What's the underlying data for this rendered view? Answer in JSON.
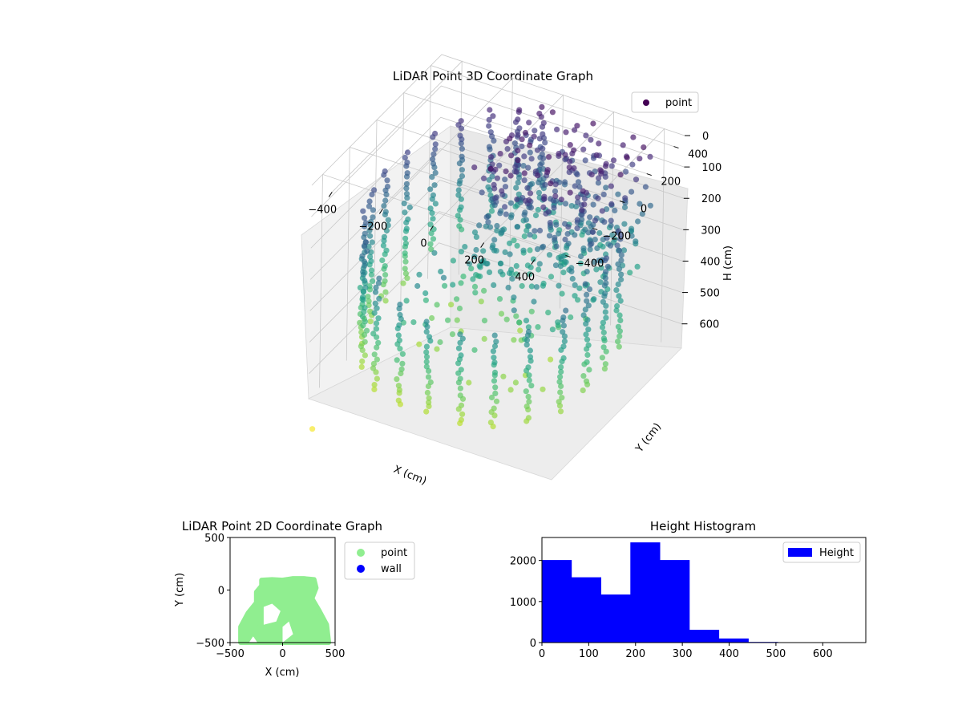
{
  "chart_data": [
    {
      "type": "scatter",
      "projection": "3d",
      "title": "LiDAR Point 3D Coordinate Graph",
      "xlabel": "X (cm)",
      "ylabel": "Y (cm)",
      "zlabel": "H (cm)",
      "xticks": [
        -400,
        -200,
        0,
        200,
        400
      ],
      "yticks": [
        -400,
        -200,
        0,
        200,
        400
      ],
      "zticks": [
        0,
        100,
        200,
        300,
        400,
        500,
        600
      ],
      "xlim": [
        -480,
        480
      ],
      "ylim": [
        -480,
        480
      ],
      "zlim": [
        0,
        680
      ],
      "z_axis_inverted": true,
      "colormap": "viridis",
      "legend": {
        "entries": [
          "point"
        ],
        "position": "top-right"
      },
      "grid": true,
      "series": [
        {
          "name": "point",
          "description_of_structure": "ring of vertical point columns around room perimeter plus dense upper cluster",
          "columns": [
            {
              "x": -420,
              "y": 120,
              "h_top": 140,
              "h_bottom": 560
            },
            {
              "x": -440,
              "y": 0,
              "h_top": 150,
              "h_bottom": 580
            },
            {
              "x": -430,
              "y": -120,
              "h_top": 160,
              "h_bottom": 590
            },
            {
              "x": -400,
              "y": -240,
              "h_top": 170,
              "h_bottom": 600
            },
            {
              "x": -340,
              "y": -340,
              "h_top": 200,
              "h_bottom": 610
            },
            {
              "x": -250,
              "y": -420,
              "h_top": 260,
              "h_bottom": 620
            },
            {
              "x": -140,
              "y": -450,
              "h_top": 300,
              "h_bottom": 620
            },
            {
              "x": -20,
              "y": -460,
              "h_top": 320,
              "h_bottom": 620
            },
            {
              "x": 100,
              "y": -450,
              "h_top": 330,
              "h_bottom": 620
            },
            {
              "x": 220,
              "y": -420,
              "h_top": 320,
              "h_bottom": 610
            },
            {
              "x": 320,
              "y": -360,
              "h_top": 300,
              "h_bottom": 600
            },
            {
              "x": 400,
              "y": -260,
              "h_top": 260,
              "h_bottom": 580
            },
            {
              "x": 430,
              "y": -140,
              "h_top": 220,
              "h_bottom": 560
            },
            {
              "x": 440,
              "y": -20,
              "h_top": 180,
              "h_bottom": 540
            },
            {
              "x": 430,
              "y": 100,
              "h_top": 150,
              "h_bottom": 520
            },
            {
              "x": -380,
              "y": 240,
              "h_top": 120,
              "h_bottom": 500
            },
            {
              "x": -320,
              "y": 330,
              "h_top": 100,
              "h_bottom": 460
            },
            {
              "x": -240,
              "y": 400,
              "h_top": 80,
              "h_bottom": 420
            },
            {
              "x": -150,
              "y": 430,
              "h_top": 60,
              "h_bottom": 380
            },
            {
              "x": -60,
              "y": 440,
              "h_top": 40,
              "h_bottom": 340
            }
          ],
          "clusters": [
            {
              "x_range": [
                -120,
                380
              ],
              "y_range": [
                0,
                460
              ],
              "h_range": [
                30,
                420
              ]
            },
            {
              "x_range": [
                -250,
                300
              ],
              "y_range": [
                -300,
                200
              ],
              "h_range": [
                300,
                600
              ]
            }
          ],
          "outliers": [
            {
              "x": -380,
              "y": -640,
              "h": 680
            }
          ]
        }
      ]
    },
    {
      "type": "scatter",
      "title": "LiDAR Point 2D Coordinate Graph",
      "xlabel": "X (cm)",
      "ylabel": "Y (cm)",
      "xlim": [
        -500,
        500
      ],
      "ylim": [
        -500,
        500
      ],
      "xticks": [
        -500,
        0,
        500
      ],
      "yticks": [
        -500,
        0,
        500
      ],
      "legend": {
        "entries": [
          "point",
          "wall"
        ],
        "position": "outside-right"
      },
      "series": [
        {
          "name": "point",
          "color": "#90ee90",
          "outline": [
            [
              -400,
              -500
            ],
            [
              -400,
              -350
            ],
            [
              -330,
              -220
            ],
            [
              -250,
              -120
            ],
            [
              -250,
              -20
            ],
            [
              -200,
              40
            ],
            [
              -200,
              95
            ],
            [
              -100,
              100
            ],
            [
              0,
              95
            ],
            [
              100,
              110
            ],
            [
              200,
              110
            ],
            [
              300,
              100
            ],
            [
              320,
              20
            ],
            [
              280,
              -80
            ],
            [
              350,
              -200
            ],
            [
              420,
              -330
            ],
            [
              440,
              -500
            ]
          ],
          "holes": [
            [
              [
                -180,
                -330
              ],
              [
                -60,
                -300
              ],
              [
                -20,
                -200
              ],
              [
                -100,
                -130
              ],
              [
                -180,
                -160
              ]
            ],
            [
              [
                0,
                -500
              ],
              [
                100,
                -420
              ],
              [
                60,
                -300
              ],
              [
                0,
                -350
              ]
            ],
            [
              [
                -320,
                -500
              ],
              [
                -280,
                -440
              ],
              [
                -240,
                -500
              ]
            ]
          ],
          "extra_points": [
            [
              -260,
              -420
            ],
            [
              -220,
              -360
            ]
          ]
        },
        {
          "name": "wall",
          "color": "#0000ff",
          "points": []
        }
      ]
    },
    {
      "type": "bar",
      "subtype": "histogram",
      "title": "Height Histogram",
      "xlabel": "",
      "ylabel": "",
      "xlim": [
        0,
        692
      ],
      "ylim": [
        0,
        2560
      ],
      "xticks": [
        0,
        100,
        200,
        300,
        400,
        500,
        600
      ],
      "yticks": [
        0,
        1000,
        2000
      ],
      "legend": {
        "entries": [
          "Height"
        ],
        "position": "top-right"
      },
      "series": [
        {
          "name": "Height",
          "color": "#0000ff",
          "bin_edges": [
            0,
            63,
            126,
            189,
            252,
            315,
            378,
            441,
            504,
            567,
            630,
            692
          ],
          "values": [
            2010,
            1590,
            1170,
            2440,
            2010,
            310,
            100,
            15,
            5,
            2,
            1
          ]
        }
      ]
    }
  ]
}
